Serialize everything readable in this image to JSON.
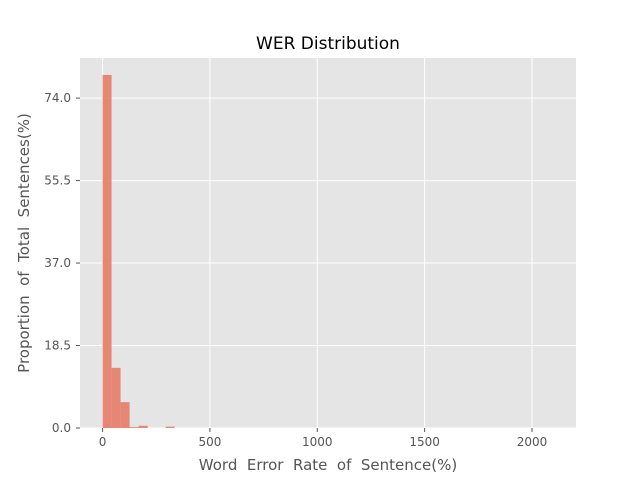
{
  "chart_data": {
    "type": "bar",
    "title": "WER Distribution",
    "xlabel": "Word  Error  Rate  of  Sentence(%)",
    "ylabel": "Proportion  of  Total  Sentences(%)",
    "xlim": [
      -105,
      2205
    ],
    "ylim": [
      0,
      83
    ],
    "x_ticks": [
      0,
      500,
      1000,
      1500,
      2000
    ],
    "x_tick_labels": [
      "0",
      "500",
      "1000",
      "1500",
      "2000"
    ],
    "y_ticks": [
      0,
      18.5,
      37,
      55.5,
      74
    ],
    "y_tick_labels": [
      "0.0",
      "18.5",
      "37.0",
      "55.5",
      "74.0"
    ],
    "grid": true,
    "bin_width": 42,
    "bins": [
      {
        "x0": 0,
        "value": 79.2
      },
      {
        "x0": 42,
        "value": 13.5
      },
      {
        "x0": 84,
        "value": 5.8
      },
      {
        "x0": 126,
        "value": 0.2
      },
      {
        "x0": 168,
        "value": 0.5
      },
      {
        "x0": 294,
        "value": 0.3
      }
    ],
    "colors": {
      "bar": "#e5826e",
      "plot_background": "#e5e5e5",
      "grid": "#ffffff",
      "tick_label": "#555555",
      "axis_label": "#555555",
      "title": "#000000"
    }
  }
}
